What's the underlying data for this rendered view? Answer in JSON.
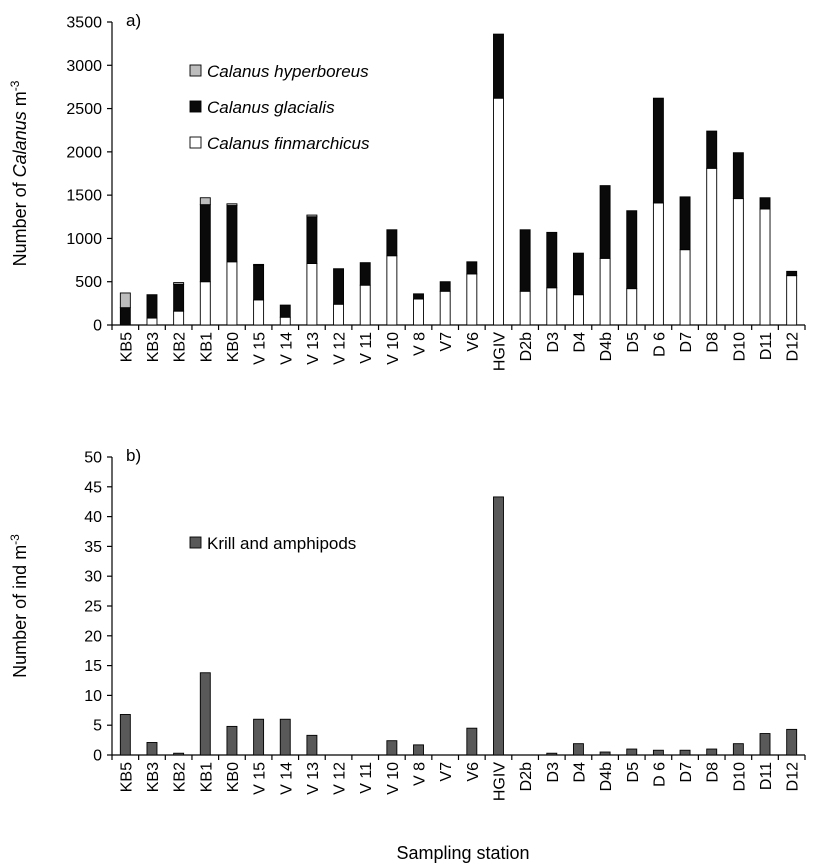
{
  "x_axis_title": "Sampling station",
  "chart_data": [
    {
      "type": "bar",
      "stacked": true,
      "panel_label": "a)",
      "ylabel_prefix": "Number of ",
      "ylabel_italic": "Calanus",
      "ylabel_unit": " m",
      "ylabel_exp": "-3",
      "ylim": [
        0,
        3500
      ],
      "yticks": [
        0,
        500,
        1000,
        1500,
        2000,
        2500,
        3000,
        3500
      ],
      "grid": false,
      "legend_position": "top-left",
      "categories": [
        "KB5",
        "KB3",
        "KB2",
        "KB1",
        "KB0",
        "V 15",
        "V 14",
        "V 13",
        "V 12",
        "V 11",
        "V 10",
        "V 8",
        "V7",
        "V6",
        "HGIV",
        "D2b",
        "D3",
        "D4",
        "D4b",
        "D5",
        "D 6",
        "D7",
        "D8",
        "D10",
        "D11",
        "D12"
      ],
      "series": [
        {
          "name": "Calanus finmarchicus",
          "color": "#ffffff",
          "values": [
            0,
            80,
            160,
            500,
            730,
            290,
            90,
            710,
            240,
            460,
            800,
            300,
            390,
            590,
            2620,
            390,
            430,
            350,
            770,
            420,
            1410,
            870,
            1810,
            1460,
            1340,
            570
          ]
        },
        {
          "name": "Calanus glacialis",
          "color": "#0a0a0a",
          "values": [
            200,
            270,
            310,
            890,
            650,
            400,
            140,
            540,
            410,
            260,
            300,
            60,
            110,
            140,
            740,
            710,
            640,
            480,
            840,
            900,
            1210,
            610,
            430,
            530,
            130,
            50
          ]
        },
        {
          "name": "Calanus hyperboreus",
          "color": "#bdbdbd",
          "values": [
            170,
            0,
            20,
            80,
            20,
            10,
            0,
            20,
            0,
            0,
            0,
            0,
            0,
            0,
            0,
            0,
            0,
            0,
            0,
            0,
            0,
            0,
            0,
            0,
            0,
            0
          ]
        }
      ]
    },
    {
      "type": "bar",
      "panel_label": "b)",
      "ylabel_prefix": "Number of ind",
      "ylabel_italic": "",
      "ylabel_unit": " m",
      "ylabel_exp": "-3",
      "ylim": [
        0,
        50
      ],
      "yticks": [
        0,
        5,
        10,
        15,
        20,
        25,
        30,
        35,
        40,
        45,
        50
      ],
      "grid": false,
      "legend_position": "upper-left",
      "categories": [
        "KB5",
        "KB3",
        "KB2",
        "KB1",
        "KB0",
        "V 15",
        "V 14",
        "V 13",
        "V 12",
        "V 11",
        "V 10",
        "V 8",
        "V7",
        "V6",
        "HGIV",
        "D2b",
        "D3",
        "D4",
        "D4b",
        "D5",
        "D 6",
        "D7",
        "D8",
        "D10",
        "D11",
        "D12"
      ],
      "series": [
        {
          "name": "Krill and amphipods",
          "color": "#595959",
          "values": [
            6.8,
            2.1,
            0.3,
            13.8,
            4.8,
            6.0,
            6.0,
            3.3,
            0,
            0,
            2.4,
            1.7,
            0,
            4.5,
            43.3,
            0,
            0.3,
            1.9,
            0.5,
            1.0,
            0.8,
            0.8,
            1.0,
            1.9,
            3.6,
            4.3
          ]
        }
      ]
    }
  ]
}
